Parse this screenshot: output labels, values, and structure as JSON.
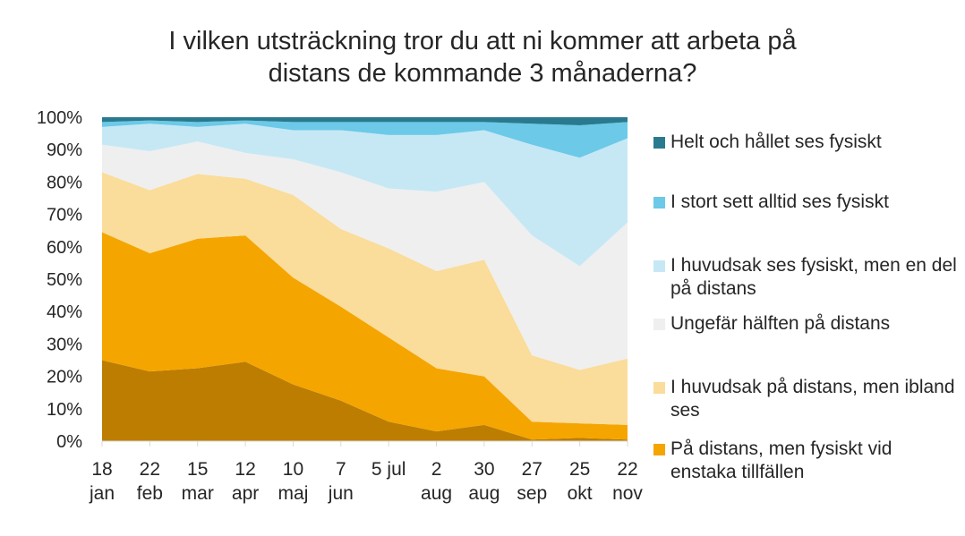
{
  "chart_data": {
    "type": "area",
    "stacked": true,
    "title": [
      "I vilken utsträckning tror du att ni kommer att arbeta på",
      "distans de kommande 3 månaderna?"
    ],
    "xlabel": "",
    "ylabel": "",
    "ylim": [
      0,
      100
    ],
    "y_ticks": [
      "0%",
      "10%",
      "20%",
      "30%",
      "40%",
      "50%",
      "60%",
      "70%",
      "80%",
      "90%",
      "100%"
    ],
    "x_labels": [
      [
        "18",
        "jan"
      ],
      [
        "22",
        "feb"
      ],
      [
        "15",
        "mar"
      ],
      [
        "12",
        "apr"
      ],
      [
        "10",
        "maj"
      ],
      [
        "7",
        "jun"
      ],
      [
        "5 jul",
        ""
      ],
      [
        "2",
        "aug"
      ],
      [
        "30",
        "aug"
      ],
      [
        "27",
        "sep"
      ],
      [
        "25",
        "okt"
      ],
      [
        "22",
        "nov"
      ]
    ],
    "legend_position": "right",
    "series": [
      {
        "name": "",
        "color": "#bc7d00",
        "values": [
          25,
          21.5,
          22.5,
          24.5,
          17.5,
          12.5,
          6,
          3,
          5,
          0.5,
          1,
          0.5
        ]
      },
      {
        "name": "På distans, men fysiskt vid enstaka tillfällen",
        "color": "#f5a500",
        "values": [
          39.5,
          36.5,
          40,
          39,
          33,
          29,
          26,
          19.5,
          15,
          5.5,
          4.5,
          4.5
        ]
      },
      {
        "name": "I huvudsak på distans, men ibland ses",
        "color": "#fadc9b",
        "values": [
          18.5,
          19.5,
          20,
          17.5,
          25.5,
          24,
          27.5,
          30,
          36,
          20.5,
          16.5,
          20.5
        ]
      },
      {
        "name": "Ungefär hälften på distans",
        "color": "#efefef",
        "values": [
          8.5,
          12,
          10,
          8,
          11,
          17.5,
          18.5,
          24.5,
          24,
          37,
          32,
          42
        ]
      },
      {
        "name": "I huvudsak ses fysiskt, men en del på distans",
        "color": "#c6e8f5",
        "values": [
          5.5,
          8.5,
          4.5,
          9,
          9,
          13,
          16.5,
          17.5,
          16,
          28,
          33.5,
          26
        ]
      },
      {
        "name": "I stort sett alltid ses fysiskt",
        "color": "#6cc9e8",
        "values": [
          1.5,
          1,
          1.5,
          1,
          2.5,
          2.5,
          4,
          4,
          2.5,
          6.5,
          10,
          5
        ]
      },
      {
        "name": "Helt och hållet ses fysiskt",
        "color": "#2a7a8f",
        "values": [
          1.5,
          1,
          1.5,
          1,
          1.5,
          1.5,
          1.5,
          1.5,
          1.5,
          2,
          2.5,
          1.5
        ]
      }
    ],
    "grid": false
  }
}
